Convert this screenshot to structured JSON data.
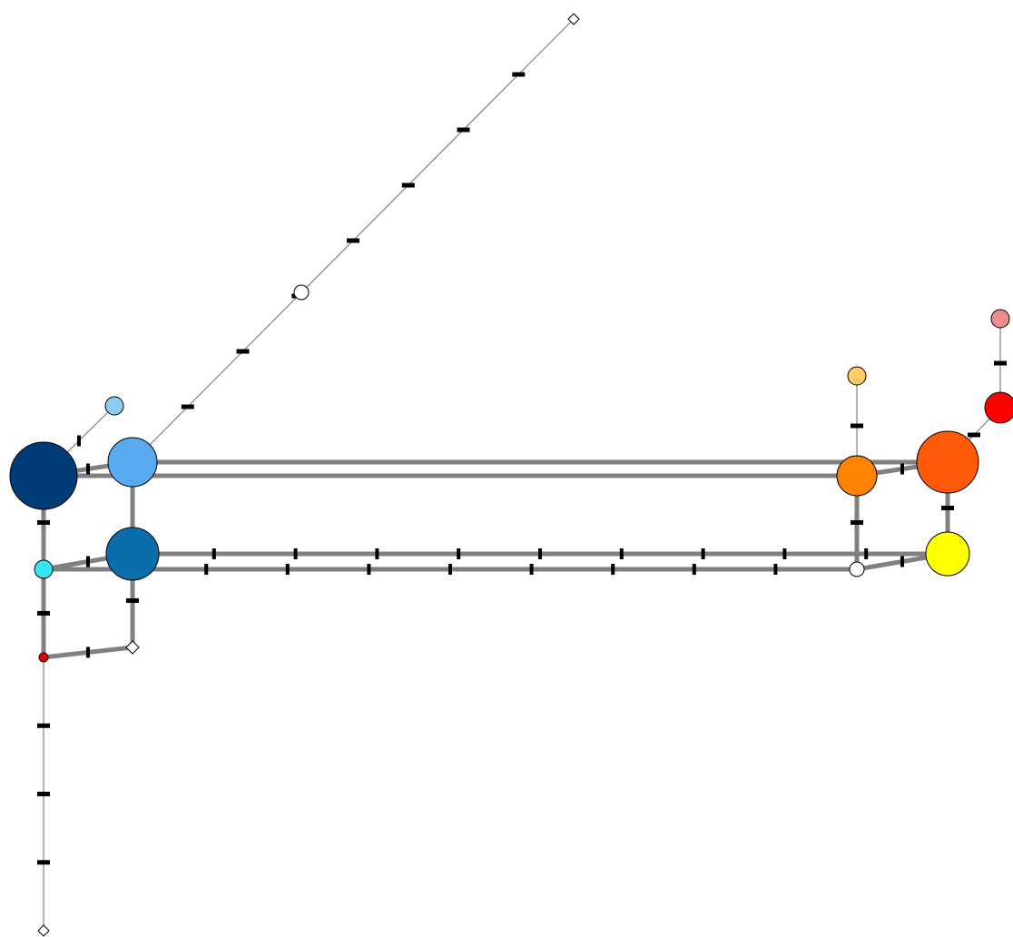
{
  "diagram": {
    "type": "network-graph",
    "colors": {
      "background": "#ffffff",
      "heavy_edge": "#808080",
      "thin_edge": "#808080",
      "tick": "#000000",
      "node_outline": "#000000"
    },
    "nodes": [
      {
        "id": "n-navy-large",
        "color": "#003C78",
        "size": "large"
      },
      {
        "id": "n-lightblue-large",
        "color": "#5AAAF0",
        "size": "large"
      },
      {
        "id": "n-steelblue-large",
        "color": "#0A6EAA",
        "size": "large"
      },
      {
        "id": "n-cyan-small",
        "color": "#33E6F0",
        "size": "small"
      },
      {
        "id": "n-red-tiny",
        "color": "#E60000",
        "size": "tiny"
      },
      {
        "id": "n-white-junction-left",
        "color": "#FFFFFF",
        "size": "tiny"
      },
      {
        "id": "n-skyblue-small",
        "color": "#8CCCF0",
        "size": "small"
      },
      {
        "id": "n-white-top",
        "color": "#FFFFFF",
        "size": "tiny"
      },
      {
        "id": "n-white-mid",
        "color": "#FFFFFF",
        "size": "small"
      },
      {
        "id": "n-white-bottom",
        "color": "#FFFFFF",
        "size": "tiny"
      },
      {
        "id": "n-orange-medium",
        "color": "#FF8200",
        "size": "medium"
      },
      {
        "id": "n-darkorange-large",
        "color": "#FF5A0A",
        "size": "large"
      },
      {
        "id": "n-yellow-large",
        "color": "#FFFF00",
        "size": "large"
      },
      {
        "id": "n-white-junction-right",
        "color": "#FFFFFF",
        "size": "small"
      },
      {
        "id": "n-peach-small",
        "color": "#FFCC66",
        "size": "small"
      },
      {
        "id": "n-red-medium",
        "color": "#FF0000",
        "size": "medium"
      },
      {
        "id": "n-pink-small",
        "color": "#F08C8C",
        "size": "small"
      }
    ],
    "edges": [
      {
        "from": "n-navy-large",
        "to": "n-lightblue-large",
        "style": "heavy"
      },
      {
        "from": "n-lightblue-large",
        "to": "n-darkorange-large",
        "style": "heavy"
      },
      {
        "from": "n-navy-large",
        "to": "n-orange-medium",
        "style": "heavy"
      },
      {
        "from": "n-orange-medium",
        "to": "n-darkorange-large",
        "style": "heavy"
      },
      {
        "from": "n-lightblue-large",
        "to": "n-steelblue-large",
        "style": "heavy"
      },
      {
        "from": "n-cyan-small",
        "to": "n-steelblue-large",
        "style": "heavy"
      },
      {
        "from": "n-steelblue-large",
        "to": "n-yellow-large",
        "style": "heavy"
      },
      {
        "from": "n-cyan-small",
        "to": "n-white-junction-right",
        "style": "heavy"
      },
      {
        "from": "n-white-junction-right",
        "to": "n-yellow-large",
        "style": "heavy"
      },
      {
        "from": "n-orange-medium",
        "to": "n-white-junction-right",
        "style": "heavy"
      },
      {
        "from": "n-darkorange-large",
        "to": "n-yellow-large",
        "style": "heavy"
      },
      {
        "from": "n-navy-large",
        "to": "n-cyan-small",
        "style": "heavy"
      },
      {
        "from": "n-cyan-small",
        "to": "n-red-tiny",
        "style": "heavy"
      },
      {
        "from": "n-red-tiny",
        "to": "n-white-junction-left",
        "style": "heavy"
      },
      {
        "from": "n-steelblue-large",
        "to": "n-white-junction-left",
        "style": "heavy"
      },
      {
        "from": "n-navy-large",
        "to": "n-skyblue-small",
        "style": "thin"
      },
      {
        "from": "n-lightblue-large",
        "to": "n-white-top",
        "style": "thin"
      },
      {
        "from": "n-red-tiny",
        "to": "n-white-bottom",
        "style": "thin"
      },
      {
        "from": "n-orange-medium",
        "to": "n-peach-small",
        "style": "thin"
      },
      {
        "from": "n-darkorange-large",
        "to": "n-red-medium",
        "style": "thin"
      },
      {
        "from": "n-red-medium",
        "to": "n-pink-small",
        "style": "thin"
      }
    ]
  }
}
